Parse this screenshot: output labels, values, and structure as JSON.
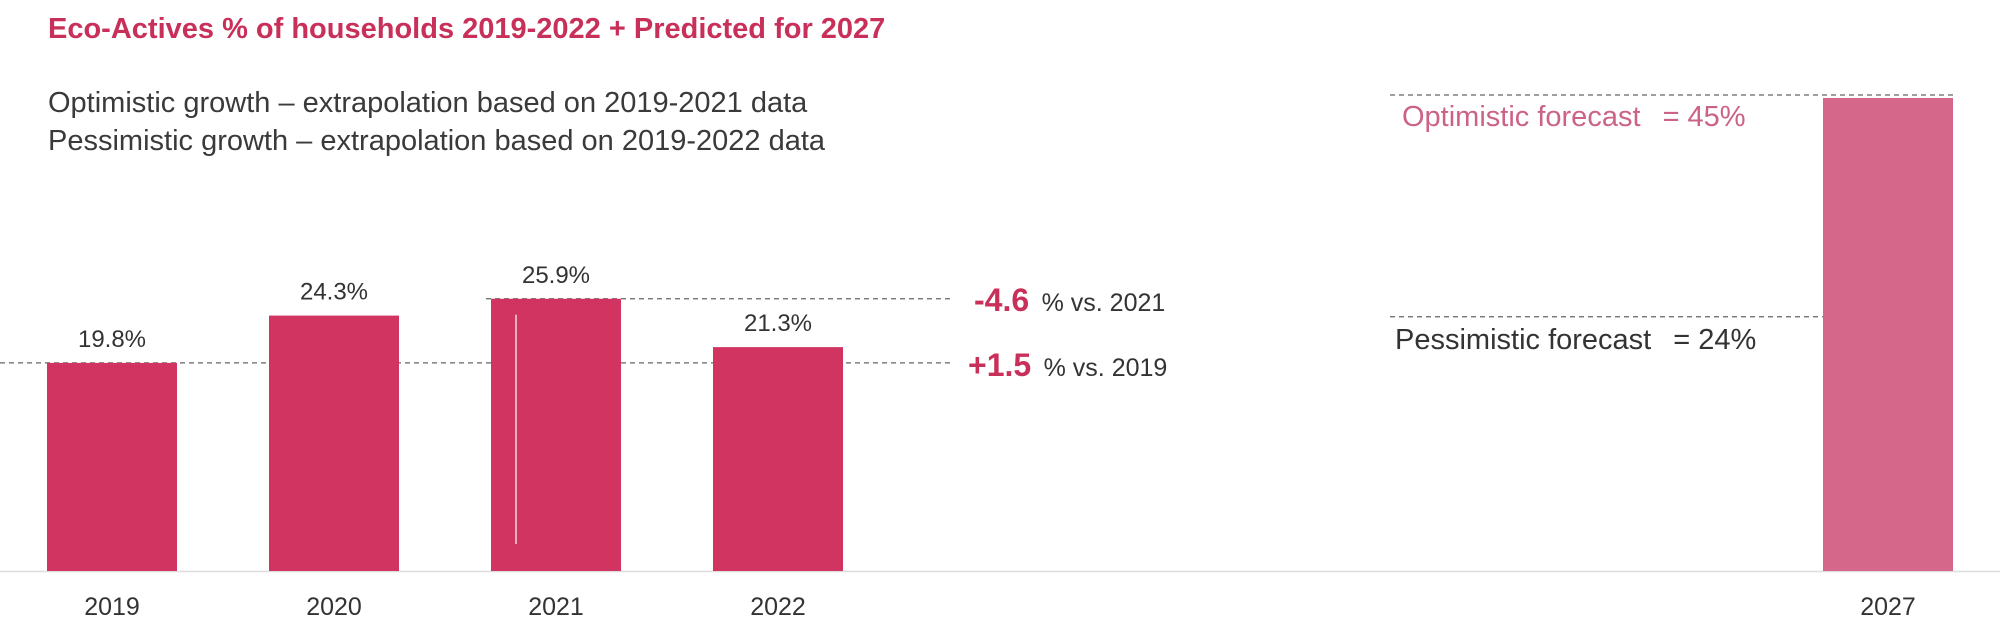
{
  "colors": {
    "bar": "#d13460",
    "forecast_bar": "#d5678a",
    "title": "#c8305a",
    "text": "#333333",
    "optimistic_text": "#cc6386",
    "ref_line": "#666666",
    "axis": "#dddddd"
  },
  "chart_data": {
    "type": "bar",
    "title": "Eco-Actives % of households 2019-2022 + Predicted for 2027",
    "subtitle_lines": [
      "Optimistic growth – extrapolation based on 2019-2021 data",
      "Pessimistic growth – extrapolation based on 2019-2022 data"
    ],
    "categories": [
      "2019",
      "2020",
      "2021",
      "2022",
      "2027"
    ],
    "values": [
      19.8,
      24.3,
      25.9,
      21.3,
      45
    ],
    "value_labels": [
      "19.8%",
      "24.3%",
      "25.9%",
      "21.3%",
      ""
    ],
    "ylim": [
      0,
      45
    ],
    "grid": false,
    "comparisons": [
      {
        "delta": "-4.6",
        "text": "% vs. 2021",
        "ref_value": 25.9
      },
      {
        "delta": "+1.5",
        "text": "% vs. 2019",
        "ref_value": 19.8
      }
    ],
    "forecasts": [
      {
        "label": "Optimistic forecast",
        "value_text": "= 45%",
        "value": 45
      },
      {
        "label": "Pessimistic forecast",
        "value_text": "= 24%",
        "value": 24
      }
    ]
  }
}
